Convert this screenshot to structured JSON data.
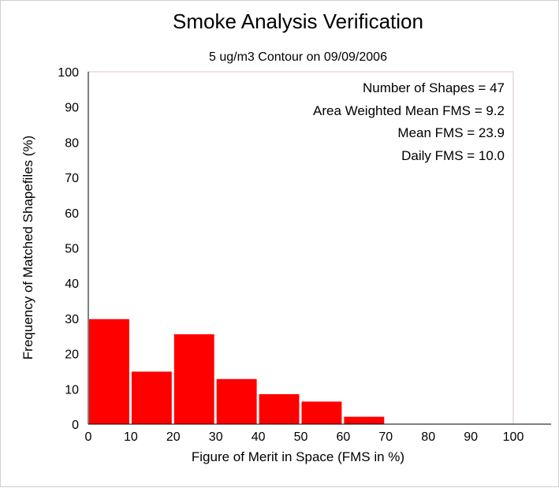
{
  "chart_data": {
    "type": "bar",
    "title": "Smoke Analysis Verification",
    "subtitle": "5 ug/m3 Contour on 09/09/2006",
    "xlabel": "Figure of Merit in Space (FMS in %)",
    "ylabel": "Frequency of Matched Shapefiles (%)",
    "xlim": [
      0,
      100
    ],
    "ylim": [
      0,
      100
    ],
    "xticks": [
      0,
      10,
      20,
      30,
      40,
      50,
      60,
      70,
      80,
      90,
      100
    ],
    "yticks": [
      0,
      10,
      20,
      30,
      40,
      50,
      60,
      70,
      80,
      90,
      100
    ],
    "bin_width": 10,
    "bins": [
      0,
      10,
      20,
      30,
      40,
      50,
      60,
      70,
      80,
      90
    ],
    "values": [
      29.8,
      14.9,
      25.5,
      12.8,
      8.5,
      6.4,
      2.1,
      0,
      0,
      0
    ],
    "bar_color": "#ff0000",
    "grid": false,
    "annotations": [
      "Number of Shapes = 47",
      "Area Weighted Mean FMS = 9.2",
      "Mean FMS = 23.9",
      "Daily FMS = 10.0"
    ]
  }
}
